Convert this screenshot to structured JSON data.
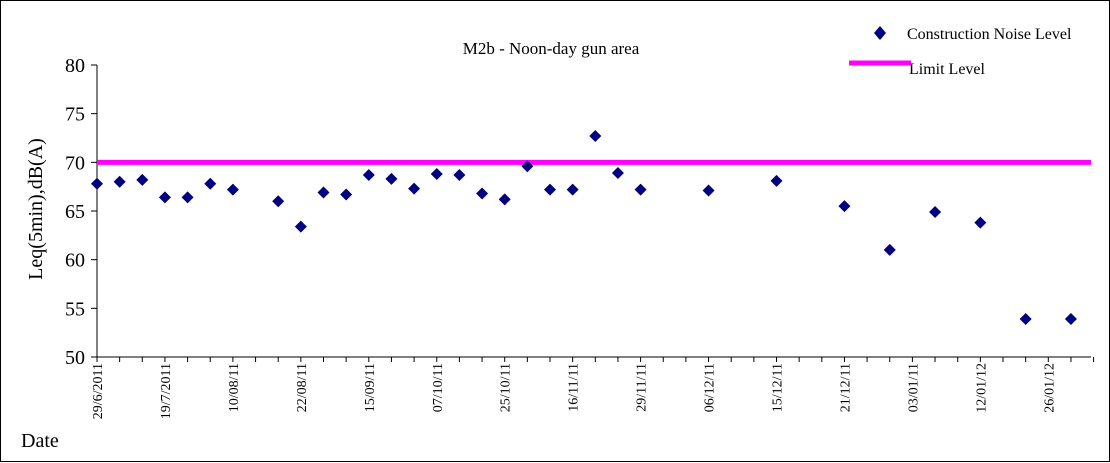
{
  "chart_data": {
    "type": "scatter",
    "title": "M2b - Noon-day gun area",
    "ylabel": "Leq(5min),dB(A)",
    "xlabel": "Date",
    "ylim": [
      50,
      80
    ],
    "yticks": [
      50,
      55,
      60,
      65,
      70,
      75,
      80
    ],
    "xtick_labels": [
      "29/6/2011",
      "19/7/2011",
      "10/08/11",
      "22/08/11",
      "15/09/11",
      "07/10/11",
      "25/10/11",
      "16/11/11",
      "29/11/11",
      "06/12/11",
      "15/12/11",
      "21/12/11",
      "03/01/11",
      "12/01/12",
      "26/01/12"
    ],
    "x_index_range": [
      0,
      44
    ],
    "series": [
      {
        "name": "Construction Noise Level",
        "marker": "diamond",
        "color": "#000080",
        "x": [
          0,
          1,
          2,
          3,
          4,
          5,
          6,
          8,
          9,
          10,
          11,
          12,
          13,
          14,
          15,
          16,
          17,
          18,
          19,
          20,
          21,
          22,
          23,
          24,
          27,
          30,
          33,
          35,
          37,
          39,
          41,
          43
        ],
        "values": [
          67.8,
          68.0,
          68.2,
          66.4,
          66.4,
          67.8,
          67.2,
          66.0,
          63.4,
          66.9,
          66.7,
          68.7,
          68.3,
          67.3,
          68.8,
          68.7,
          66.8,
          66.2,
          69.6,
          67.2,
          67.2,
          72.7,
          68.9,
          67.2,
          67.1,
          68.1,
          65.5,
          61.0,
          64.9,
          63.8,
          53.9,
          53.9
        ]
      },
      {
        "name": "Limit Level",
        "marker": "line",
        "color": "#ff00ff",
        "value": 70
      }
    ],
    "legend_position": "top-right",
    "grid": false
  }
}
